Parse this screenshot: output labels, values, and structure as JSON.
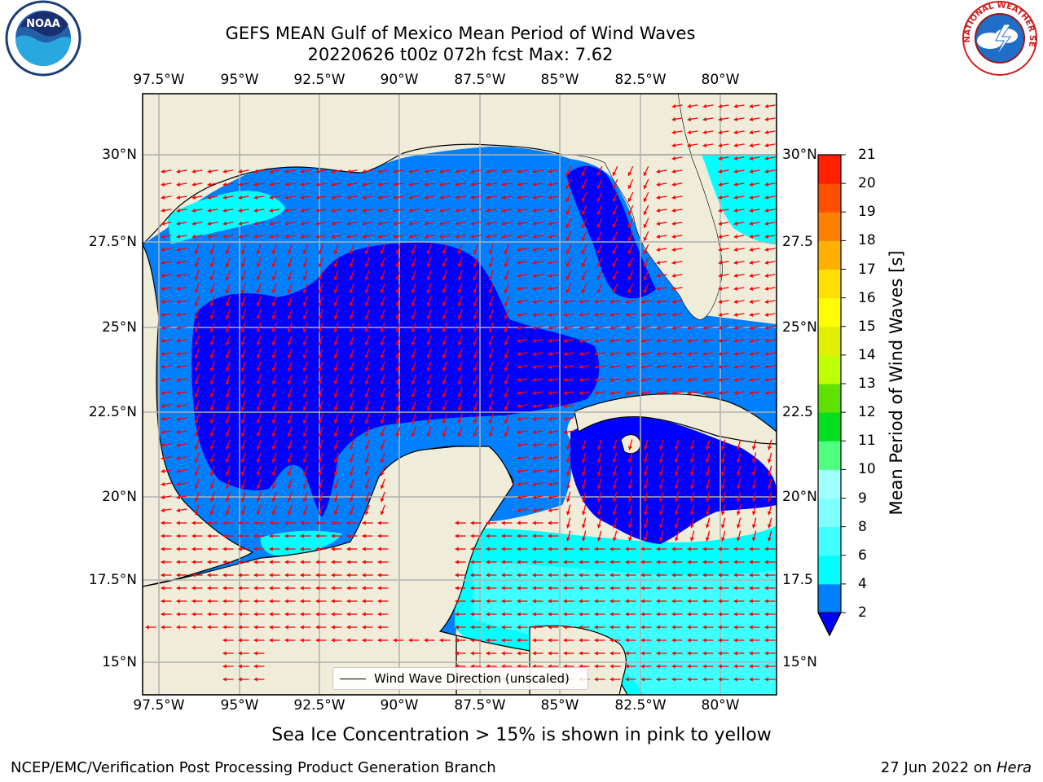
{
  "title_line1": "GEFS MEAN Gulf of Mexico Mean Period of Wind Waves",
  "title_line2": "20220626 t00z 072h fcst   Max: 7.62",
  "lon_labels": [
    "97.5°W",
    "95°W",
    "92.5°W",
    "90°W",
    "87.5°W",
    "85°W",
    "82.5°W",
    "80°W"
  ],
  "lat_labels_left": [
    "30°N",
    "27.5°N",
    "25°N",
    "22.5°N",
    "20°N",
    "17.5°N",
    "15°N"
  ],
  "lat_labels_right": [
    "30°N",
    "27.5",
    "25°N",
    "22.5",
    "20°N",
    "17.5",
    "15°N"
  ],
  "colorbar": {
    "title": "Mean Period of Wind Waves [s]",
    "ticks": [
      "2",
      "4",
      "6",
      "8",
      "9",
      "10",
      "11",
      "12",
      "13",
      "14",
      "15",
      "16",
      "17",
      "18",
      "19",
      "20",
      "21"
    ],
    "colors": [
      "#0080ff",
      "#00ffff",
      "#40ffff",
      "#80ffff",
      "#a0ffff",
      "#50ff80",
      "#00e020",
      "#60e000",
      "#c0ff00",
      "#e0f000",
      "#ffff00",
      "#ffe000",
      "#ffb000",
      "#ff8000",
      "#ff5000",
      "#ff2000"
    ],
    "extend_color": "#0000ff"
  },
  "legend_label": "Wind Wave Direction (unscaled)",
  "sub_caption": "Sea Ice Concentration > 15% is shown in pink to yellow",
  "credit": "NCEP/EMC/Verification Post Processing Product Generation Branch",
  "date_text": "27 Jun 2022 on ",
  "date_host": "Hera",
  "logo_left": "NOAA",
  "logo_right": "NATIONAL WEATHER SERVICE",
  "colors": {
    "land": "#efedda",
    "ocean_low": "#0000ff",
    "ocean_2_4": "#0080ff",
    "ocean_4_6": "#00ffff",
    "ocean_6_8": "#40ffff",
    "arrow": "#ff0000",
    "grid": "#b0b0b0"
  }
}
